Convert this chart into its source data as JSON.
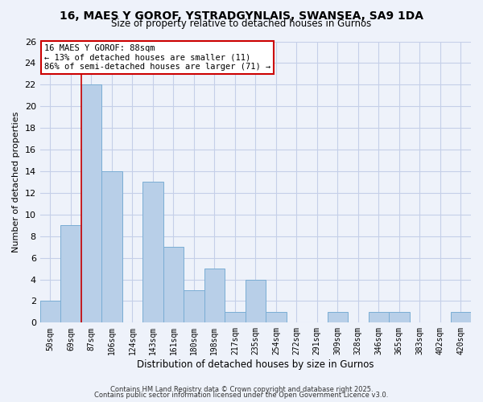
{
  "title": "16, MAES Y GOROF, YSTRADGYNLAIS, SWANSEA, SA9 1DA",
  "subtitle": "Size of property relative to detached houses in Gurnos",
  "xlabel": "Distribution of detached houses by size in Gurnos",
  "ylabel": "Number of detached properties",
  "bins": [
    "50sqm",
    "69sqm",
    "87sqm",
    "106sqm",
    "124sqm",
    "143sqm",
    "161sqm",
    "180sqm",
    "198sqm",
    "217sqm",
    "235sqm",
    "254sqm",
    "272sqm",
    "291sqm",
    "309sqm",
    "328sqm",
    "346sqm",
    "365sqm",
    "383sqm",
    "402sqm",
    "420sqm"
  ],
  "values": [
    2,
    9,
    22,
    14,
    0,
    13,
    7,
    3,
    5,
    1,
    4,
    1,
    0,
    0,
    1,
    0,
    1,
    1,
    0,
    0,
    1
  ],
  "bar_color": "#b8cfe8",
  "bar_edge_color": "#7aadd4",
  "ylim": [
    0,
    26
  ],
  "yticks": [
    0,
    2,
    4,
    6,
    8,
    10,
    12,
    14,
    16,
    18,
    20,
    22,
    24,
    26
  ],
  "annotation_title": "16 MAES Y GOROF: 88sqm",
  "annotation_line1": "← 13% of detached houses are smaller (11)",
  "annotation_line2": "86% of semi-detached houses are larger (71) →",
  "vline_color": "#cc0000",
  "annotation_box_color": "#ffffff",
  "annotation_box_edge": "#cc0000",
  "footer1": "Contains HM Land Registry data © Crown copyright and database right 2025.",
  "footer2": "Contains public sector information licensed under the Open Government Licence v3.0.",
  "background_color": "#eef2fa",
  "grid_color": "#c5cfe8"
}
